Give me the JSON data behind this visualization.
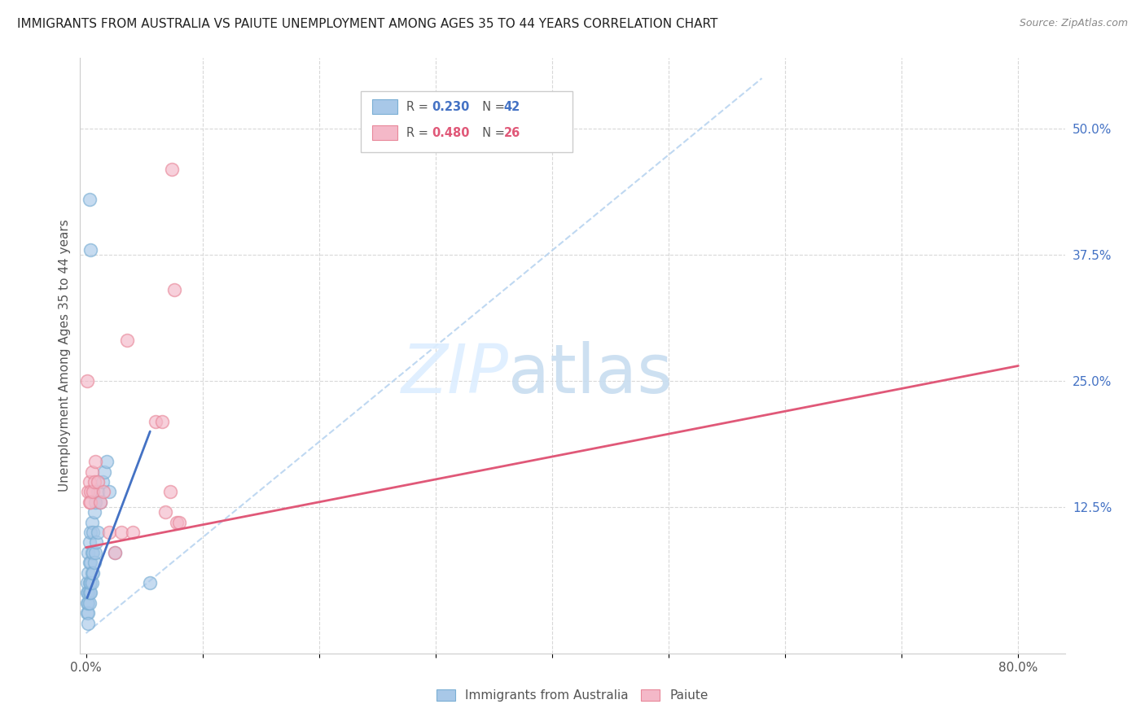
{
  "title": "IMMIGRANTS FROM AUSTRALIA VS PAIUTE UNEMPLOYMENT AMONG AGES 35 TO 44 YEARS CORRELATION CHART",
  "source": "Source: ZipAtlas.com",
  "ylabel": "Unemployment Among Ages 35 to 44 years",
  "legend_label_1": "Immigrants from Australia",
  "legend_label_2": "Paiute",
  "r1": 0.23,
  "n1": 42,
  "r2": 0.48,
  "n2": 26,
  "xlim": [
    -0.005,
    0.84
  ],
  "ylim": [
    -0.02,
    0.57
  ],
  "xticks": [
    0.0,
    0.1,
    0.2,
    0.3,
    0.4,
    0.5,
    0.6,
    0.7,
    0.8
  ],
  "xtick_labels": [
    "0.0%",
    "",
    "",
    "",
    "",
    "",
    "",
    "",
    "80.0%"
  ],
  "ytick_right_vals": [
    0.0,
    0.125,
    0.25,
    0.375,
    0.5
  ],
  "ytick_right_labels": [
    "",
    "12.5%",
    "25.0%",
    "37.5%",
    "50.0%"
  ],
  "color_blue": "#a8c8e8",
  "color_blue_edge": "#7bafd4",
  "color_pink": "#f4b8c8",
  "color_pink_edge": "#e8889a",
  "color_blue_line": "#4472c4",
  "color_pink_line": "#e05878",
  "color_dashed": "#b8d4f0",
  "color_grid": "#d8d8d8",
  "color_tick_right": "#4472c4",
  "australia_x": [
    0.001,
    0.001,
    0.001,
    0.001,
    0.002,
    0.002,
    0.002,
    0.002,
    0.002,
    0.003,
    0.003,
    0.003,
    0.003,
    0.003,
    0.004,
    0.004,
    0.004,
    0.004,
    0.005,
    0.005,
    0.005,
    0.005,
    0.006,
    0.006,
    0.006,
    0.007,
    0.007,
    0.008,
    0.008,
    0.009,
    0.01,
    0.01,
    0.012,
    0.014,
    0.016,
    0.018,
    0.02,
    0.025,
    0.003,
    0.004,
    0.002,
    0.055
  ],
  "australia_y": [
    0.02,
    0.03,
    0.04,
    0.05,
    0.02,
    0.03,
    0.04,
    0.06,
    0.08,
    0.03,
    0.04,
    0.05,
    0.07,
    0.09,
    0.04,
    0.05,
    0.07,
    0.1,
    0.05,
    0.06,
    0.08,
    0.11,
    0.06,
    0.08,
    0.1,
    0.07,
    0.12,
    0.08,
    0.13,
    0.09,
    0.1,
    0.14,
    0.13,
    0.15,
    0.16,
    0.17,
    0.14,
    0.08,
    0.43,
    0.38,
    0.01,
    0.05
  ],
  "paiute_x": [
    0.001,
    0.002,
    0.003,
    0.003,
    0.004,
    0.004,
    0.005,
    0.006,
    0.007,
    0.008,
    0.01,
    0.012,
    0.015,
    0.02,
    0.025,
    0.03,
    0.035,
    0.04,
    0.06,
    0.065,
    0.068,
    0.072,
    0.074,
    0.076,
    0.078,
    0.08
  ],
  "paiute_y": [
    0.25,
    0.14,
    0.13,
    0.15,
    0.14,
    0.13,
    0.16,
    0.14,
    0.15,
    0.17,
    0.15,
    0.13,
    0.14,
    0.1,
    0.08,
    0.1,
    0.29,
    0.1,
    0.21,
    0.21,
    0.12,
    0.14,
    0.46,
    0.34,
    0.11,
    0.11
  ],
  "pink_line_x0": 0.0,
  "pink_line_y0": 0.085,
  "pink_line_x1": 0.8,
  "pink_line_y1": 0.265,
  "blue_line_x0": 0.001,
  "blue_line_y0": 0.035,
  "blue_line_x1": 0.055,
  "blue_line_y1": 0.2,
  "dashed_line_x0": 0.0,
  "dashed_line_y0": 0.0,
  "dashed_line_x1": 0.58,
  "dashed_line_y1": 0.55
}
